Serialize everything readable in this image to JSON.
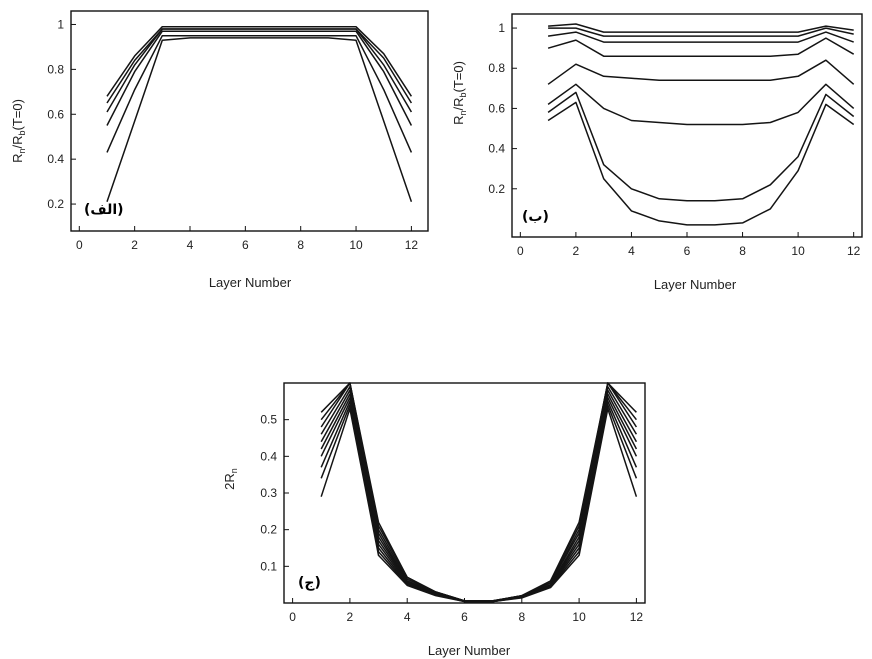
{
  "chart_data": [
    {
      "type": "line",
      "panel_label": "(الف)",
      "xlabel": "Layer Number",
      "ylabel": "Rn/Rb(T=0)",
      "ylabel_main": "R",
      "ylabel_sub1": "n",
      "ylabel_mid": "/R",
      "ylabel_sub2": "b",
      "ylabel_tail": "(T=0)",
      "xlim": [
        -0.3,
        12.6
      ],
      "ylim": [
        0.08,
        1.06
      ],
      "xticks": [
        0,
        2,
        4,
        6,
        8,
        10,
        12
      ],
      "yticks": [
        0.2,
        0.4,
        0.6,
        0.8,
        1
      ],
      "ytick_labels": [
        "0.2",
        "0.4",
        "0.6",
        "0.8",
        "1"
      ],
      "x": [
        1,
        2,
        3,
        4,
        5,
        6,
        7,
        8,
        9,
        10,
        11,
        12
      ],
      "series": [
        {
          "values": [
            0.68,
            0.86,
            0.99,
            0.99,
            0.99,
            0.99,
            0.99,
            0.99,
            0.99,
            0.99,
            0.87,
            0.68
          ]
        },
        {
          "values": [
            0.65,
            0.84,
            0.98,
            0.98,
            0.98,
            0.98,
            0.98,
            0.98,
            0.98,
            0.98,
            0.85,
            0.65
          ]
        },
        {
          "values": [
            0.61,
            0.82,
            0.98,
            0.98,
            0.98,
            0.98,
            0.98,
            0.98,
            0.98,
            0.98,
            0.82,
            0.61
          ]
        },
        {
          "values": [
            0.55,
            0.79,
            0.97,
            0.97,
            0.97,
            0.97,
            0.97,
            0.97,
            0.97,
            0.97,
            0.79,
            0.55
          ]
        },
        {
          "values": [
            0.43,
            0.71,
            0.95,
            0.95,
            0.95,
            0.95,
            0.95,
            0.95,
            0.95,
            0.95,
            0.71,
            0.43
          ]
        },
        {
          "values": [
            0.21,
            0.57,
            0.93,
            0.94,
            0.94,
            0.94,
            0.94,
            0.94,
            0.94,
            0.93,
            0.57,
            0.21
          ]
        }
      ]
    },
    {
      "type": "line",
      "panel_label": "(ب)",
      "xlabel": "Layer Number",
      "ylabel": "Rn/Rb(T=0)",
      "ylabel_main": "R",
      "ylabel_sub1": "n",
      "ylabel_mid": "/R",
      "ylabel_sub2": "b",
      "ylabel_tail": "(T=0)",
      "xlim": [
        -0.3,
        12.3
      ],
      "ylim": [
        -0.04,
        1.07
      ],
      "xticks": [
        0,
        2,
        4,
        6,
        8,
        10,
        12
      ],
      "yticks": [
        0.2,
        0.4,
        0.6,
        0.8,
        1
      ],
      "ytick_labels": [
        "0.2",
        "0.4",
        "0.6",
        "0.8",
        "1"
      ],
      "x": [
        1,
        2,
        3,
        4,
        5,
        6,
        7,
        8,
        9,
        10,
        11,
        12
      ],
      "series": [
        {
          "values": [
            1.01,
            1.02,
            0.98,
            0.98,
            0.98,
            0.98,
            0.98,
            0.98,
            0.98,
            0.98,
            1.01,
            0.99
          ]
        },
        {
          "values": [
            1.0,
            1.0,
            0.96,
            0.96,
            0.96,
            0.96,
            0.96,
            0.96,
            0.96,
            0.96,
            1.0,
            0.97
          ]
        },
        {
          "values": [
            0.96,
            0.98,
            0.93,
            0.93,
            0.93,
            0.93,
            0.93,
            0.93,
            0.93,
            0.93,
            0.98,
            0.93
          ]
        },
        {
          "values": [
            0.9,
            0.94,
            0.86,
            0.86,
            0.86,
            0.86,
            0.86,
            0.86,
            0.86,
            0.87,
            0.95,
            0.87
          ]
        },
        {
          "values": [
            0.72,
            0.82,
            0.76,
            0.75,
            0.74,
            0.74,
            0.74,
            0.74,
            0.74,
            0.76,
            0.84,
            0.72
          ]
        },
        {
          "values": [
            0.62,
            0.72,
            0.6,
            0.54,
            0.53,
            0.52,
            0.52,
            0.52,
            0.53,
            0.58,
            0.72,
            0.6
          ]
        },
        {
          "values": [
            0.58,
            0.68,
            0.32,
            0.2,
            0.15,
            0.14,
            0.14,
            0.15,
            0.22,
            0.36,
            0.67,
            0.56
          ]
        },
        {
          "values": [
            0.54,
            0.63,
            0.25,
            0.09,
            0.04,
            0.02,
            0.02,
            0.03,
            0.1,
            0.29,
            0.62,
            0.52
          ]
        }
      ]
    },
    {
      "type": "line",
      "panel_label": "(ج)",
      "xlabel": "Layer Number",
      "ylabel": "2Rn",
      "ylabel_main": "2R",
      "ylabel_sub1": "n",
      "xlim": [
        -0.3,
        12.3
      ],
      "ylim": [
        0,
        0.6
      ],
      "xticks": [
        0,
        2,
        4,
        6,
        8,
        10,
        12
      ],
      "yticks": [
        0.1,
        0.2,
        0.3,
        0.4,
        0.5
      ],
      "ytick_labels": [
        "0.1",
        "0.2",
        "0.3",
        "0.4",
        "0.5"
      ],
      "x": [
        1,
        2,
        3,
        4,
        5,
        6,
        7,
        8,
        9,
        10,
        11,
        12
      ],
      "series": [
        {
          "values": [
            0.52,
            0.6,
            0.22,
            0.07,
            0.03,
            0.006,
            0.006,
            0.02,
            0.06,
            0.22,
            0.6,
            0.52
          ]
        },
        {
          "values": [
            0.5,
            0.6,
            0.21,
            0.07,
            0.03,
            0.006,
            0.006,
            0.02,
            0.06,
            0.21,
            0.6,
            0.5
          ]
        },
        {
          "values": [
            0.48,
            0.6,
            0.2,
            0.065,
            0.03,
            0.006,
            0.006,
            0.02,
            0.055,
            0.2,
            0.6,
            0.48
          ]
        },
        {
          "values": [
            0.46,
            0.59,
            0.19,
            0.06,
            0.028,
            0.005,
            0.005,
            0.02,
            0.055,
            0.19,
            0.59,
            0.46
          ]
        },
        {
          "values": [
            0.44,
            0.58,
            0.18,
            0.06,
            0.027,
            0.005,
            0.005,
            0.019,
            0.05,
            0.18,
            0.58,
            0.44
          ]
        },
        {
          "values": [
            0.42,
            0.57,
            0.17,
            0.058,
            0.026,
            0.005,
            0.005,
            0.018,
            0.05,
            0.17,
            0.57,
            0.42
          ]
        },
        {
          "values": [
            0.4,
            0.56,
            0.16,
            0.055,
            0.025,
            0.004,
            0.004,
            0.017,
            0.048,
            0.16,
            0.56,
            0.4
          ]
        },
        {
          "values": [
            0.37,
            0.55,
            0.15,
            0.052,
            0.024,
            0.004,
            0.004,
            0.016,
            0.046,
            0.15,
            0.55,
            0.37
          ]
        },
        {
          "values": [
            0.34,
            0.54,
            0.14,
            0.05,
            0.022,
            0.004,
            0.004,
            0.015,
            0.044,
            0.14,
            0.54,
            0.34
          ]
        },
        {
          "values": [
            0.29,
            0.53,
            0.13,
            0.048,
            0.02,
            0.004,
            0.004,
            0.014,
            0.042,
            0.13,
            0.53,
            0.29
          ]
        }
      ]
    }
  ]
}
